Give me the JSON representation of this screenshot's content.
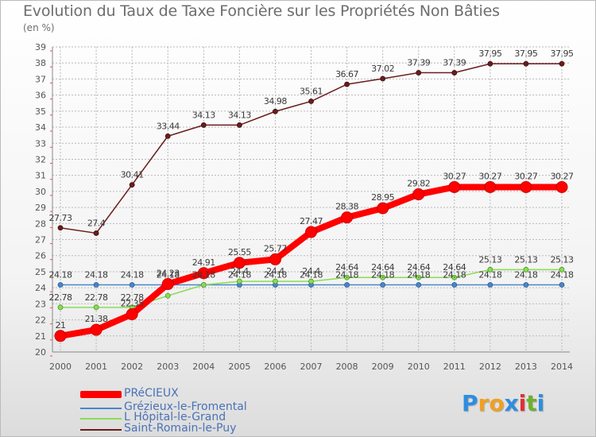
{
  "header": {
    "title": "Evolution du Taux de Taxe Foncière sur les Propriétés Non Bâties",
    "unit": "(en %)"
  },
  "brand": {
    "letters": [
      "P",
      "r",
      "o",
      "x",
      "i",
      "t",
      "i"
    ],
    "colors": [
      "#2e8de0",
      "#f0a020",
      "#f0a020",
      "#2e8de0",
      "#e03030",
      "#6fb02e",
      "#2e8de0"
    ]
  },
  "colors": {
    "precieux": "#ff0000",
    "grezieux": "#4a86c8",
    "hopital": "#88dd55",
    "saint_romain": "#6b1d1d",
    "grid": "#b8b8b8",
    "axis_text": "#555555",
    "tick_marks": "#ff4444"
  },
  "chart_data": {
    "type": "line",
    "title": "Evolution du Taux de Taxe Foncière sur les Propriétés Non Bâties",
    "ylabel": "(en %)",
    "xlabel": "",
    "x": [
      "2000",
      "2001",
      "2002",
      "2003",
      "2004",
      "2005",
      "2006",
      "2007",
      "2008",
      "2009",
      "2010",
      "2011",
      "2012",
      "2013",
      "2014"
    ],
    "ylim": [
      20,
      39
    ],
    "yticks": [
      "20",
      "21",
      "22",
      "23",
      "24",
      "25",
      "26",
      "27",
      "28",
      "29",
      "30",
      "31",
      "32",
      "33",
      "34",
      "35",
      "36",
      "37",
      "38",
      "39"
    ],
    "grid": true,
    "legend_position": "bottom-left",
    "series": [
      {
        "name": "PRéCIEUX",
        "values": [
          21,
          21.38,
          22.35,
          24.23,
          24.91,
          25.55,
          25.77,
          27.47,
          28.38,
          28.95,
          29.82,
          30.27,
          30.27,
          30.27,
          30.27
        ],
        "labels": [
          "21",
          "21.38",
          "22.35",
          "24.23",
          "24.91",
          "25.55",
          "25.77",
          "27.47",
          "28.38",
          "28.95",
          "29.82",
          "30.27",
          "30.27",
          "30.27",
          "30.27"
        ]
      },
      {
        "name": "Grézieux-le-Fromental",
        "values": [
          24.18,
          24.18,
          24.18,
          24.18,
          24.18,
          24.18,
          24.18,
          24.18,
          24.18,
          24.18,
          24.18,
          24.18,
          24.18,
          24.18,
          24.18
        ],
        "labels": [
          "24.18",
          "24.18",
          "24.18",
          "24.18",
          "24.18",
          "24.18",
          "24.18",
          "24.18",
          "24.18",
          "24.18",
          "24.18",
          "24.18",
          "24.18",
          "24.18",
          "24.18"
        ]
      },
      {
        "name": "L  Hôpital-le-Grand",
        "values": [
          22.78,
          22.78,
          22.78,
          23.5,
          24.18,
          24.4,
          24.4,
          24.4,
          24.64,
          24.64,
          24.64,
          24.64,
          25.13,
          25.13,
          25.13
        ],
        "labels": [
          "22.78",
          "22.78",
          "22.78",
          "",
          "",
          "24.4",
          "24.4",
          "24.4",
          "24.64",
          "24.64",
          "24.64",
          "24.64",
          "25.13",
          "25.13",
          "25.13"
        ]
      },
      {
        "name": "Saint-Romain-le-Puy",
        "values": [
          27.73,
          27.4,
          30.41,
          33.44,
          34.13,
          34.13,
          34.98,
          35.61,
          36.67,
          37.02,
          37.39,
          37.39,
          37.95,
          37.95,
          37.95
        ],
        "labels": [
          "27.73",
          "27.4",
          "30.41",
          "33.44",
          "34.13",
          "34.13",
          "34.98",
          "35.61",
          "36.67",
          "37.02",
          "37.39",
          "37.39",
          "37.95",
          "37.95",
          "37.95"
        ]
      }
    ]
  }
}
